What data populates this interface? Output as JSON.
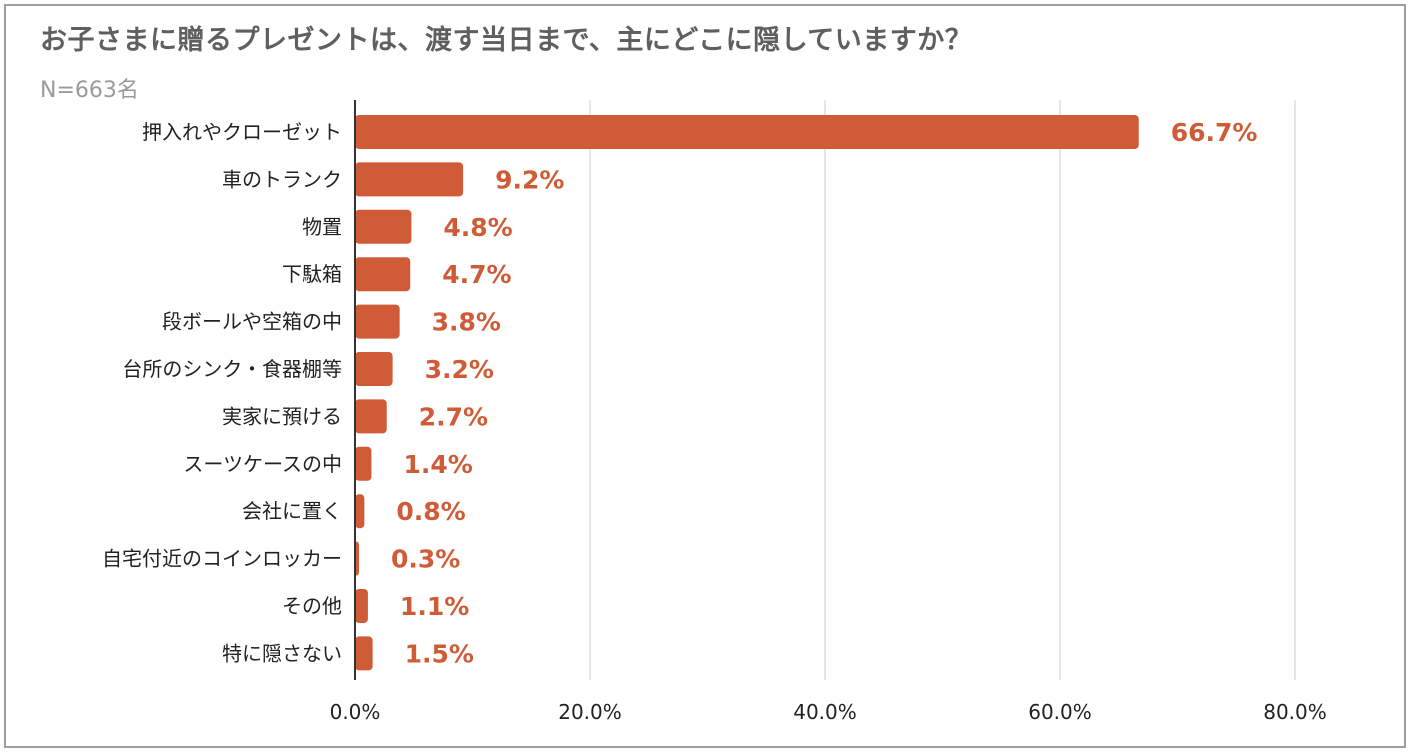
{
  "chart_data": {
    "type": "bar",
    "orientation": "horizontal",
    "title": "お子さまに贈るプレゼントは、渡す当日まで、主にどこに隠していますか？",
    "subtitle": "N=663名",
    "categories": [
      "押入れやクローゼット",
      "車のトランク",
      "物置",
      "下駄箱",
      "段ボールや空箱の中",
      "台所のシンク・食器棚等",
      "実家に預ける",
      "スーツケースの中",
      "会社に置く",
      "自宅付近のコインロッカー",
      "その他",
      "特に隠さない"
    ],
    "values": [
      66.7,
      9.2,
      4.8,
      4.7,
      3.8,
      3.2,
      2.7,
      1.4,
      0.8,
      0.3,
      1.1,
      1.5
    ],
    "value_labels": [
      "66.7%",
      "9.2%",
      "4.8%",
      "4.7%",
      "3.8%",
      "3.2%",
      "2.7%",
      "1.4%",
      "0.8%",
      "0.3%",
      "1.1%",
      "1.5%"
    ],
    "xlim": [
      0,
      80
    ],
    "xticks": [
      0,
      20,
      40,
      60,
      80
    ],
    "xtick_labels": [
      "0.0%",
      "20.0%",
      "40.0%",
      "60.0%",
      "80.0%"
    ],
    "grid": true,
    "legend": "none",
    "bar_color": "#cf5c37",
    "label_color": "#cf5c37"
  }
}
